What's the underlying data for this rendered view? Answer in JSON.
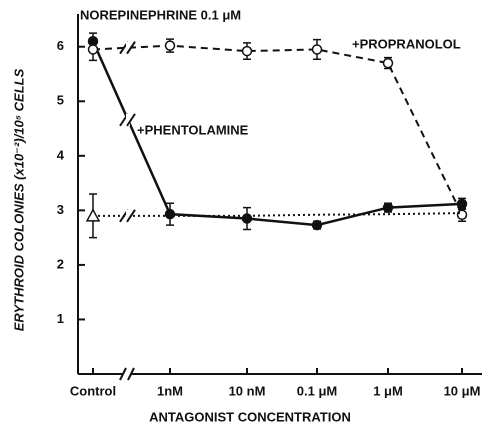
{
  "chart_data": {
    "type": "line",
    "title": "NOREPINEPHRINE 0.1 μM",
    "x_label": "ANTAGONIST CONCENTRATION",
    "y_label": "ERYTHROID COLONIES (x10⁻²)/10⁵ CELLS",
    "categories": [
      "Control",
      "1nM",
      "10 nM",
      "0.1 μM",
      "1 μM",
      "10 μM"
    ],
    "ylim": [
      0,
      6.6
    ],
    "yticks": [
      1,
      2,
      3,
      4,
      5,
      6
    ],
    "axis_break": true,
    "series": [
      {
        "name": "+PHENTOLAMINE",
        "color": "#111111",
        "line": "solid",
        "marker": "filled-circle",
        "values": [
          6.1,
          2.93,
          2.85,
          2.73,
          3.05,
          3.12
        ],
        "errors": [
          0.15,
          0.2,
          0.2,
          0.07,
          0.08,
          0.1
        ]
      },
      {
        "name": "+PROPRANOLOL",
        "color": "#111111",
        "line": "dashed",
        "marker": "open-circle",
        "values": [
          5.95,
          6.02,
          5.92,
          5.95,
          5.7,
          2.92
        ],
        "errors": [
          0.2,
          0.12,
          0.15,
          0.18,
          0.1,
          0.12
        ]
      },
      {
        "color": "#111111",
        "line": "dotted",
        "marker": "open-triangle",
        "markers": "first",
        "values": [
          2.9,
          2.9,
          2.9,
          2.92,
          2.93,
          2.95
        ],
        "errors": [
          0.4
        ]
      }
    ]
  }
}
